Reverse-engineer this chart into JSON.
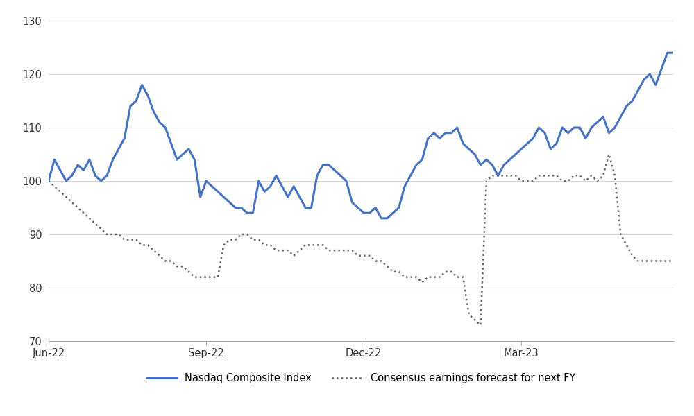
{
  "title": "",
  "nasdaq_y": [
    100,
    104,
    102,
    100,
    101,
    103,
    102,
    104,
    101,
    100,
    101,
    104,
    106,
    108,
    114,
    115,
    118,
    116,
    113,
    111,
    110,
    107,
    104,
    105,
    106,
    104,
    97,
    100,
    99,
    98,
    97,
    96,
    95,
    95,
    94,
    94,
    100,
    98,
    99,
    101,
    99,
    97,
    99,
    97,
    95,
    95,
    101,
    103,
    103,
    102,
    101,
    100,
    96,
    95,
    94,
    94,
    95,
    93,
    93,
    94,
    95,
    99,
    101,
    103,
    104,
    108,
    109,
    108,
    109,
    109,
    110,
    107,
    106,
    105,
    103,
    104,
    103,
    101,
    103,
    104,
    105,
    106,
    107,
    108,
    110,
    109,
    106,
    107,
    110,
    109,
    110,
    110,
    108,
    110,
    111,
    112,
    109,
    110,
    112,
    114,
    115,
    117,
    119,
    120,
    118,
    121,
    124,
    124
  ],
  "earnings_y": [
    100,
    99,
    98,
    97,
    96,
    95,
    94,
    93,
    92,
    91,
    90,
    90,
    90,
    89,
    89,
    89,
    88,
    88,
    87,
    86,
    85,
    85,
    84,
    84,
    83,
    82,
    82,
    82,
    82,
    82,
    88,
    89,
    89,
    90,
    90,
    89,
    89,
    88,
    88,
    87,
    87,
    87,
    86,
    87,
    88,
    88,
    88,
    88,
    87,
    87,
    87,
    87,
    87,
    86,
    86,
    86,
    85,
    85,
    84,
    83,
    83,
    82,
    82,
    82,
    81,
    82,
    82,
    82,
    83,
    83,
    82,
    82,
    75,
    74,
    73,
    100,
    101,
    101,
    101,
    101,
    101,
    100,
    100,
    100,
    101,
    101,
    101,
    101,
    100,
    100,
    101,
    101,
    100,
    101,
    100,
    101,
    105,
    101,
    90,
    88,
    86,
    85,
    85,
    85,
    85,
    85,
    85,
    85
  ],
  "n_points": 108,
  "xticks_idx": [
    0,
    27,
    54,
    81
  ],
  "xtick_labels": [
    "Jun-22",
    "Sep-22",
    "Dec-22",
    "Mar-23"
  ],
  "ylim": [
    70,
    130
  ],
  "yticks": [
    70,
    80,
    90,
    100,
    110,
    120,
    130
  ],
  "line_color": "#4472C4",
  "dotted_color": "#636363",
  "background_color": "#ffffff",
  "legend_nasdaq": "Nasdaq Composite Index",
  "legend_earnings": "Consensus earnings forecast for next FY",
  "grid_color": "#d9d9d9"
}
